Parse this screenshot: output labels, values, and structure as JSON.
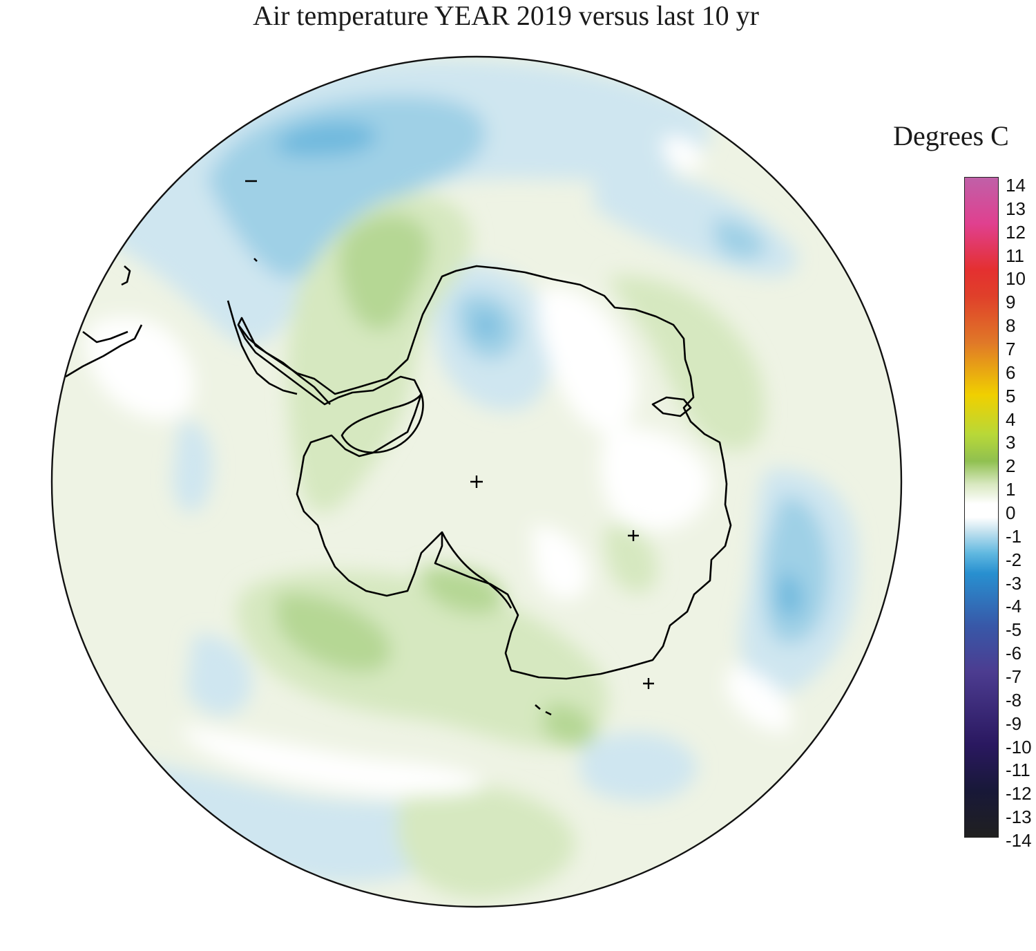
{
  "title": "Air temperature YEAR 2019 versus last 10 yr",
  "legend": {
    "unit_label": "Degrees C",
    "ticks": [
      "14",
      "13",
      "12",
      "11",
      "10",
      "9",
      "8",
      "7",
      "6",
      "5",
      "4",
      "3",
      "2",
      "1",
      "0",
      "-1",
      "-2",
      "-3",
      "-4",
      "-5",
      "-6",
      "-7",
      "-8",
      "-9",
      "-10",
      "-11",
      "-12",
      "-13",
      "-14"
    ],
    "range": [
      -14,
      14
    ],
    "colors": {
      "top": "#c060a8",
      "t13": "#e0408f",
      "t11": "#e43030",
      "t9": "#e0402a",
      "t7": "#e07828",
      "t5": "#f0d000",
      "t3": "#b8d838",
      "t2": "#90c050",
      "t1": "#d8e8c0",
      "zero": "#ffffff",
      "n1": "#c8e4f0",
      "n2": "#60b8e0",
      "n3": "#2890d0",
      "n5": "#3858a8",
      "n7": "#4c3c90",
      "n10": "#2a1860",
      "n12": "#181838",
      "bottom": "#202020"
    }
  },
  "map": {
    "projection": "south-polar-stereographic",
    "background_color": "#eef3e4",
    "warm_color": "#d6e8c0",
    "warmer_color": "#b5d794",
    "cool_color": "#cfe6f0",
    "cooler_color": "#9fd0e6",
    "coldest_color": "#6fb9de",
    "coast_color": "#000000"
  }
}
